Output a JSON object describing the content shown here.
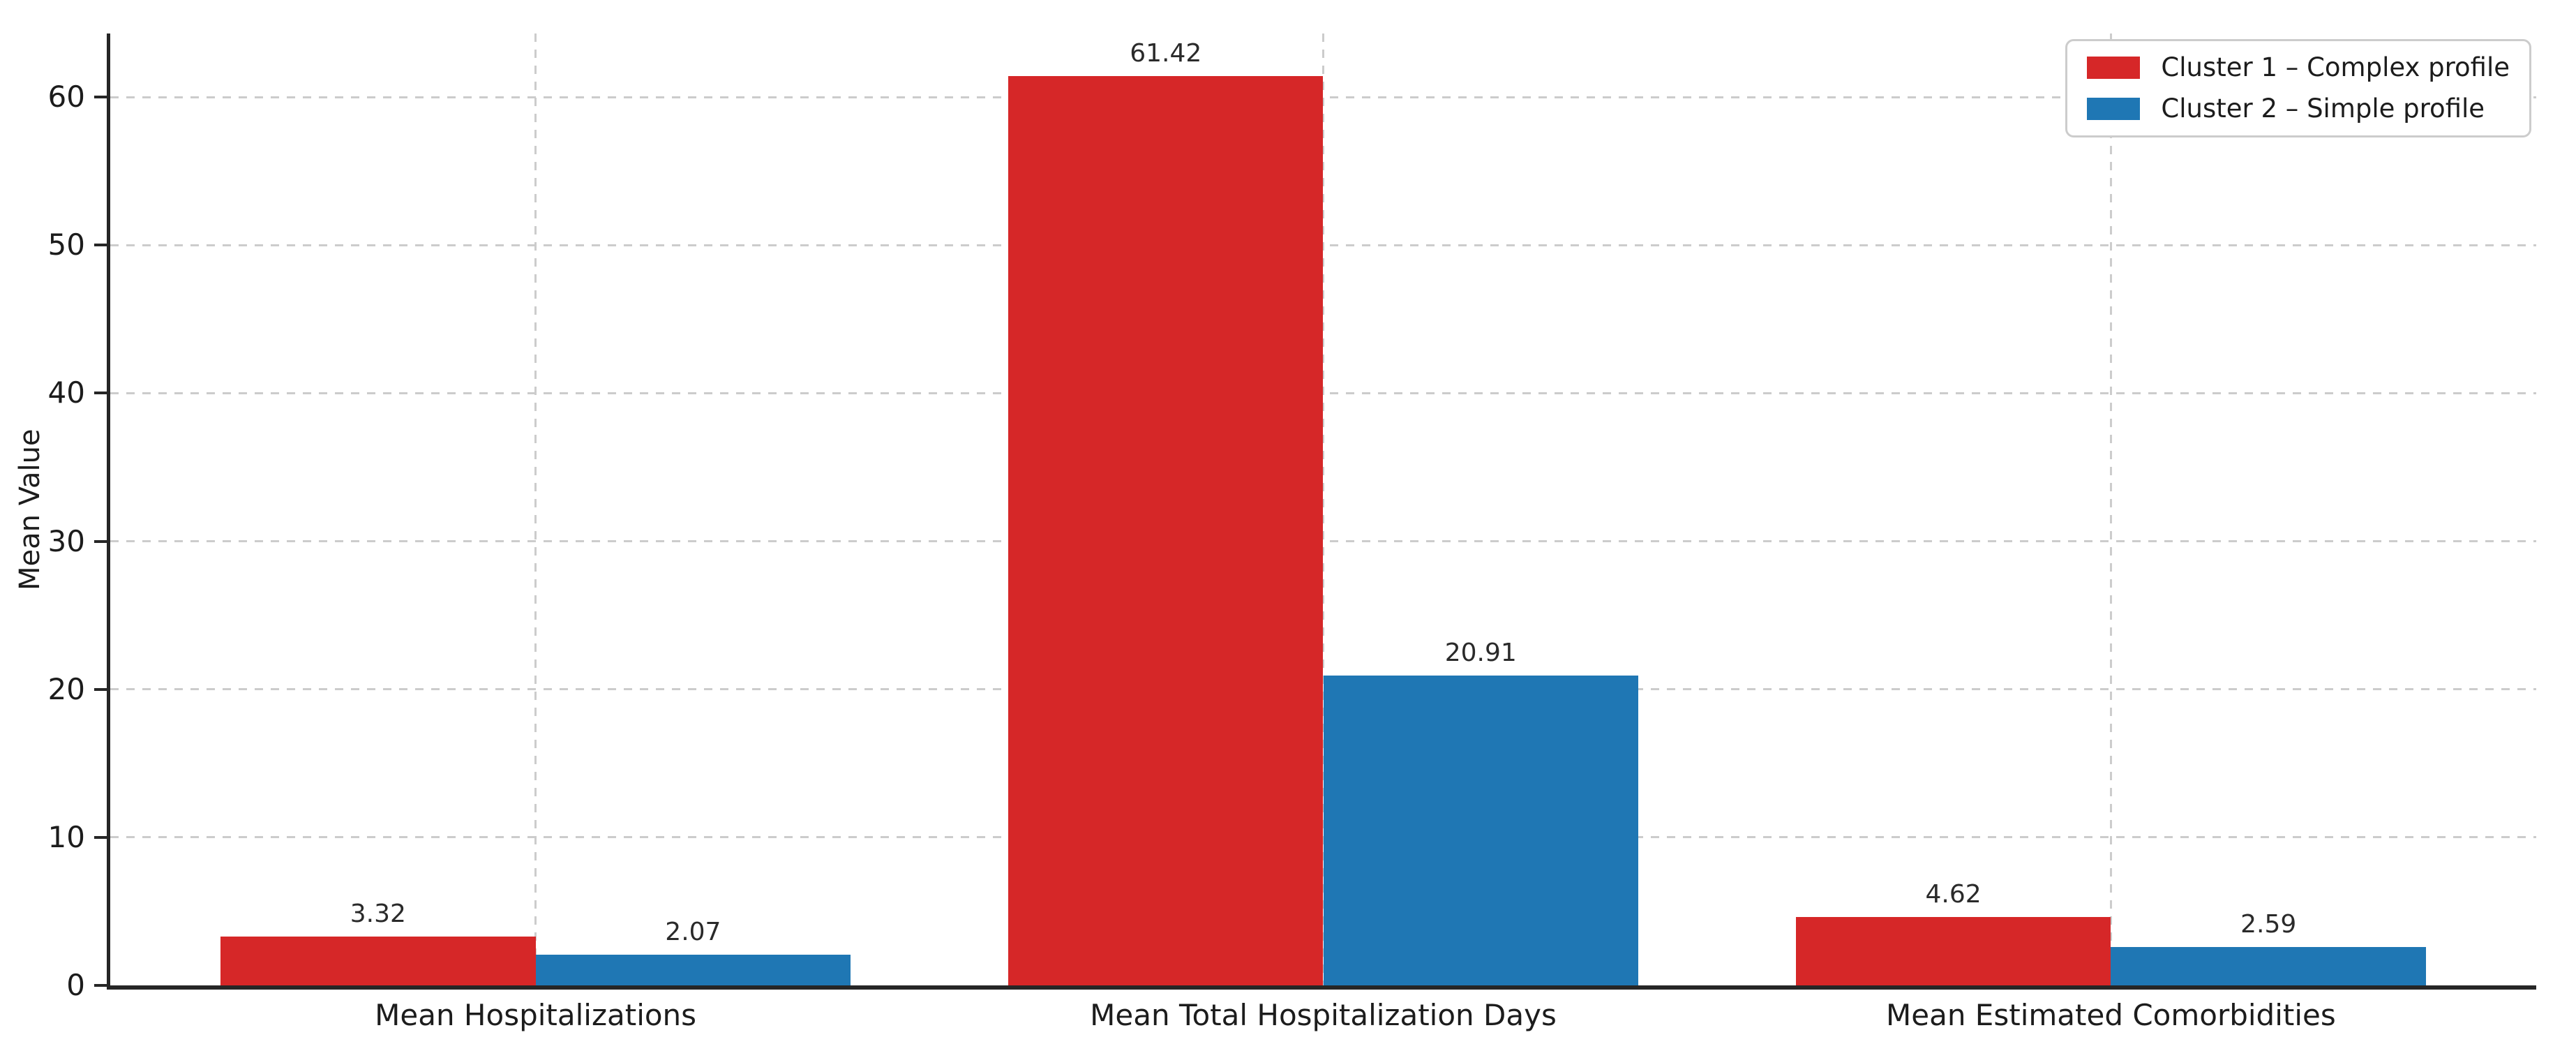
{
  "chart_data": {
    "type": "bar",
    "ylabel": "Mean Value",
    "categories": [
      "Mean Hospitalizations",
      "Mean Total Hospitalization Days",
      "Mean Estimated Comorbidities"
    ],
    "series": [
      {
        "name": "Cluster 1 – Complex profile",
        "color": "#d62728",
        "values": [
          3.32,
          61.42,
          4.62
        ]
      },
      {
        "name": "Cluster 2 – Simple profile",
        "color": "#1f77b4",
        "values": [
          2.07,
          20.91,
          2.59
        ]
      }
    ],
    "value_label_decimals": 2,
    "yticks": [
      0,
      10,
      20,
      30,
      40,
      50,
      60
    ],
    "ylim": [
      0,
      64.3
    ],
    "grid": "dashed horizontal at yticks, dashed vertical at category centers",
    "legend_position": "upper right",
    "bar_width_units": 0.4,
    "x_unit_span": 3.08,
    "x_left_pad_units": 0.54
  },
  "colors": {
    "red": "#d62728",
    "blue": "#1f77b4",
    "axis": "#262626",
    "grid": "#cccccc",
    "text": "#1c1c1c",
    "legend_border": "#cccccc",
    "background": "#ffffff"
  }
}
